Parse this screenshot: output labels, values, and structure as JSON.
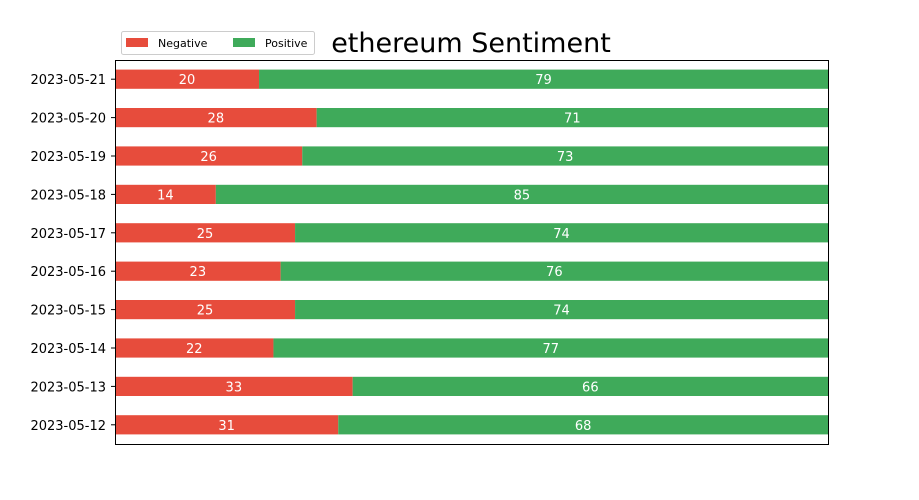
{
  "chart_data": {
    "type": "bar",
    "orientation": "horizontal",
    "stacked": true,
    "title": "ethereum Sentiment",
    "xlabel": "",
    "ylabel": "",
    "xlim": [
      0,
      99
    ],
    "grid": false,
    "show_x_ticks": false,
    "legend_position": "top-left",
    "categories": [
      "2023-05-12",
      "2023-05-13",
      "2023-05-14",
      "2023-05-15",
      "2023-05-16",
      "2023-05-17",
      "2023-05-18",
      "2023-05-19",
      "2023-05-20",
      "2023-05-21"
    ],
    "series": [
      {
        "name": "Negative",
        "color": "#e74c3c",
        "values": [
          31,
          33,
          22,
          25,
          23,
          25,
          14,
          26,
          28,
          20
        ]
      },
      {
        "name": "Positive",
        "color": "#3faa5a",
        "values": [
          68,
          66,
          77,
          74,
          76,
          74,
          85,
          73,
          71,
          79
        ]
      }
    ]
  }
}
